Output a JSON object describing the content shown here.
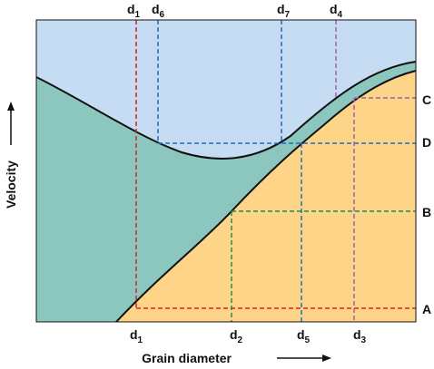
{
  "axes": {
    "y_label": "Velocity",
    "x_label": "Grain diameter"
  },
  "top_labels": [
    {
      "base": "d",
      "sub": "1"
    },
    {
      "base": "d",
      "sub": "6"
    },
    {
      "base": "d",
      "sub": "7"
    },
    {
      "base": "d",
      "sub": "4"
    }
  ],
  "bottom_labels": [
    {
      "base": "d",
      "sub": "1"
    },
    {
      "base": "d",
      "sub": "2"
    },
    {
      "base": "d",
      "sub": "5"
    },
    {
      "base": "d",
      "sub": "3"
    }
  ],
  "right_labels": [
    "C",
    "D",
    "B",
    "A"
  ]
}
